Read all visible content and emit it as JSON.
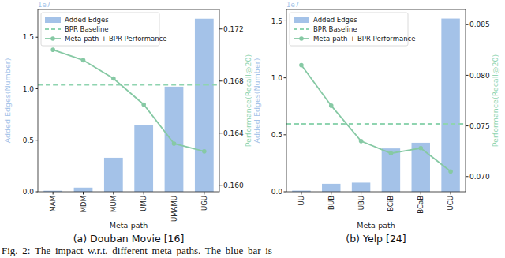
{
  "caption": "Fig. 2: The impact w.r.t. different meta paths. The blue bar is",
  "chart_data": [
    {
      "type": "bar",
      "title": "(a) Douban Movie [16]",
      "x_label": "Meta-path",
      "y_label": "Added Edges(Number)",
      "y2_label": "Performance(Recall@20)",
      "annotations": [
        "1e7"
      ],
      "categories": [
        "MAM",
        "MDM",
        "MUM",
        "UMU",
        "UMAMU",
        "UGU"
      ],
      "series": [
        {
          "name": "Added Edges",
          "type": "bar",
          "color": "#a4c2e8",
          "values": [
            0.01,
            0.04,
            0.33,
            0.65,
            1.02,
            1.68
          ]
        },
        {
          "name": "BPR Baseline",
          "type": "line",
          "axis": "y2",
          "line_style": "dashed",
          "color": "#8fd4b0",
          "values": [
            0.1677,
            0.1677,
            0.1677,
            0.1677,
            0.1677,
            0.1677
          ]
        },
        {
          "name": "Meta-path + BPR Performance",
          "type": "line",
          "axis": "y2",
          "marker": "circle",
          "color": "#86c9a4",
          "values": [
            0.1704,
            0.1696,
            0.1682,
            0.1662,
            0.1632,
            0.1626
          ]
        }
      ],
      "ylim": [
        0,
        1.77
      ],
      "yticks": [
        {
          "value": 0,
          "label": "0.0"
        },
        0.5,
        {
          "value": 1,
          "label": "1.0"
        },
        1.5
      ],
      "y2lim": [
        0.1595,
        0.1735
      ],
      "y2ticks": [
        {
          "value": 0.16,
          "label": "0.160"
        },
        0.164,
        0.168,
        0.172
      ],
      "legend": "upper left",
      "grid": false
    },
    {
      "type": "bar",
      "title": "(b) Yelp [24]",
      "x_label": "Meta-path",
      "y_label": "Added Edges(Number)",
      "y2_label": "Performance(Recall@20)",
      "annotations": [
        "1e7"
      ],
      "categories": [
        "UU",
        "BUB",
        "UBU",
        "BCiB",
        "BCaB",
        "UCU"
      ],
      "series": [
        {
          "name": "Added Edges",
          "type": "bar",
          "color": "#a4c2e8",
          "values": [
            0.01,
            0.07,
            0.08,
            0.38,
            0.43,
            1.52
          ]
        },
        {
          "name": "BPR Baseline",
          "type": "line",
          "axis": "y2",
          "line_style": "dashed",
          "color": "#8fd4b0",
          "values": [
            0.0752,
            0.0752,
            0.0752,
            0.0752,
            0.0752,
            0.0752
          ]
        },
        {
          "name": "Meta-path + BPR Performance",
          "type": "line",
          "axis": "y2",
          "marker": "circle",
          "color": "#86c9a4",
          "values": [
            0.081,
            0.077,
            0.0735,
            0.0723,
            0.0728,
            0.0705
          ]
        }
      ],
      "ylim": [
        0,
        1.6
      ],
      "yticks": [
        {
          "value": 0,
          "label": "0.0"
        },
        0.5,
        {
          "value": 1,
          "label": "1.0"
        },
        1.5
      ],
      "y2lim": [
        0.0685,
        0.0865
      ],
      "y2ticks": [
        {
          "value": 0.07,
          "label": "0.070"
        },
        0.075,
        {
          "value": 0.08,
          "label": "0.080"
        },
        0.085
      ],
      "legend": "upper left",
      "grid": false
    }
  ]
}
